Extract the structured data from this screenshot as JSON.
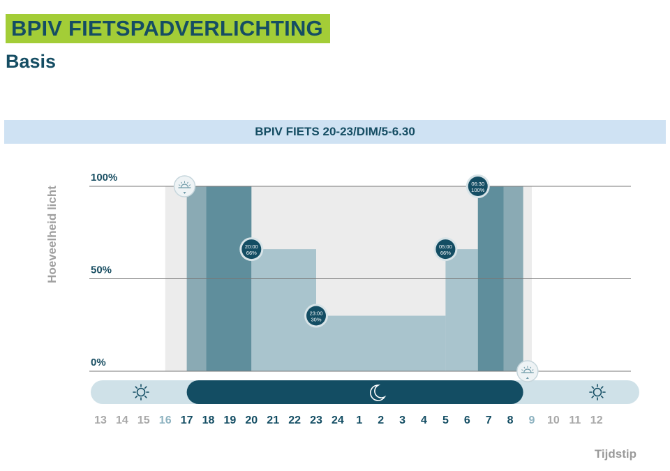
{
  "header": {
    "title": "BPIV FIETSPADVERLICHTING",
    "subtitle": "Basis"
  },
  "colors": {
    "accent_green": "#a3cd37",
    "text_dark": "#154d63",
    "banner_bg": "#cfe2f3",
    "daylight_bg": "#ececec",
    "level_100_dark": "#5f8e9c",
    "level_100_mid": "#8aaab4",
    "level_low": "#a9c4cd",
    "night_band": "#134d63",
    "day_band": "#cfe1e8",
    "hour_grey": "#a8a8a8"
  },
  "chart_data": {
    "type": "area",
    "title": "BPIV FIETS 20-23/DIM/5-6.30",
    "ylabel": "Hoeveelheid licht",
    "xlabel": "Tijdstip",
    "y_ticks": [
      "100%",
      "50%",
      "0%"
    ],
    "ylim": [
      0,
      100
    ],
    "x_ticks": [
      "13",
      "14",
      "15",
      "16",
      "17",
      "18",
      "19",
      "20",
      "21",
      "22",
      "23",
      "24",
      "1",
      "2",
      "3",
      "4",
      "5",
      "6",
      "7",
      "8",
      "9",
      "10",
      "11",
      "12"
    ],
    "x_ticks_highlight": [
      "17",
      "18",
      "19",
      "20",
      "21",
      "22",
      "23",
      "24",
      "1",
      "2",
      "3",
      "4",
      "5",
      "6",
      "7",
      "8"
    ],
    "x_ticks_light": [
      "16",
      "9"
    ],
    "daylight_window": {
      "start": 16.0,
      "end": 33.0
    },
    "series": [
      {
        "values": [
          {
            "start": 17.0,
            "end": 17.9,
            "level": 100,
            "shade": "mid"
          },
          {
            "start": 17.9,
            "end": 20.0,
            "level": 100,
            "shade": "dark"
          },
          {
            "start": 20.0,
            "end": 23.0,
            "level": 66,
            "shade": "low"
          },
          {
            "start": 23.0,
            "end": 29.0,
            "level": 30,
            "shade": "low"
          },
          {
            "start": 29.0,
            "end": 30.5,
            "level": 66,
            "shade": "low"
          },
          {
            "start": 30.5,
            "end": 31.7,
            "level": 100,
            "shade": "dark"
          },
          {
            "start": 31.7,
            "end": 32.6,
            "level": 100,
            "shade": "mid"
          }
        ]
      }
    ],
    "annotations": [
      {
        "time": "20:00",
        "level": "66%",
        "x": 20.0,
        "y": 66
      },
      {
        "time": "23:00",
        "level": "30%",
        "x": 23.0,
        "y": 30
      },
      {
        "time": "05:00",
        "level": "66%",
        "x": 29.0,
        "y": 66
      },
      {
        "time": "06:30",
        "level": "100%",
        "x": 30.5,
        "y": 100
      }
    ],
    "sunset_marker": {
      "x": 16.9,
      "y": 100
    },
    "sunrise_marker": {
      "x": 32.8,
      "y": 0
    },
    "day_night_band": {
      "day_left_end": 17.0,
      "night_start": 17.0,
      "night_end": 32.6,
      "day_right_start": 32.6
    }
  }
}
